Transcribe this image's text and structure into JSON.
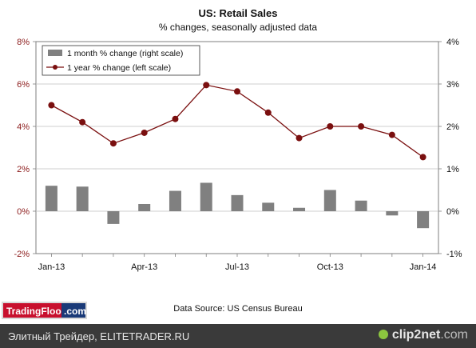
{
  "chart_data": {
    "type": "bar+line",
    "title": "US: Retail Sales",
    "subtitle": "% changes, seasonally adjusted data",
    "categories": [
      "Jan-13",
      "Feb-13",
      "Mar-13",
      "Apr-13",
      "May-13",
      "Jun-13",
      "Jul-13",
      "Aug-13",
      "Sep-13",
      "Oct-13",
      "Nov-13",
      "Dec-13",
      "Jan-14"
    ],
    "x_tick_labels": [
      "Jan-13",
      "Apr-13",
      "Jul-13",
      "Oct-13",
      "Jan-14"
    ],
    "series": [
      {
        "name": "1 month % change (right scale)",
        "type": "bar",
        "axis": "right",
        "color": "#808080",
        "values": [
          0.6,
          0.58,
          -0.3,
          0.17,
          0.48,
          0.67,
          0.38,
          0.2,
          0.08,
          0.5,
          0.25,
          -0.1,
          -0.4
        ]
      },
      {
        "name": "1 year % change (left scale)",
        "type": "line",
        "axis": "left",
        "color": "#7a0f0f",
        "values": [
          5.0,
          4.2,
          3.2,
          3.7,
          4.35,
          5.95,
          5.65,
          4.65,
          3.45,
          4.0,
          4.0,
          3.6,
          2.55
        ]
      }
    ],
    "y_left": {
      "min": -2,
      "max": 8,
      "ticks": [
        "-2%",
        "0%",
        "2%",
        "4%",
        "6%",
        "8%"
      ],
      "color": "#8b1a1a"
    },
    "y_right": {
      "min": -1,
      "max": 4,
      "ticks": [
        "-1%",
        "0%",
        "1%",
        "2%",
        "3%",
        "4%"
      ]
    },
    "legend_position": "top-left",
    "grid": true,
    "source": "Data Source: US Census Bureau"
  },
  "branding": {
    "logo_main": "TradingFloor",
    "logo_suffix": ".com"
  },
  "footer": {
    "left_text": "Элитный Трейдер, ELITETRADER.RU",
    "right_brand": "clip2net",
    "right_domain": ".com"
  }
}
